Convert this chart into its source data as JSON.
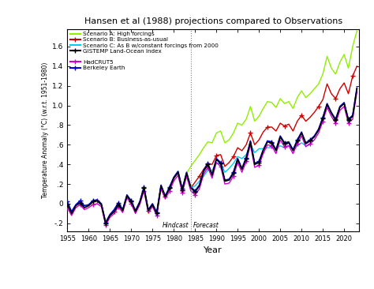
{
  "title": "Hansen et al (1988) projections compared to Observations",
  "xlabel": "Year",
  "ylabel": "Temperature Anomaly (°C) (w.r.t. 1951-1980)",
  "xlim": [
    1955,
    2023.5
  ],
  "ylim": [
    -0.28,
    1.78
  ],
  "yticks": [
    -0.2,
    0.0,
    0.2,
    0.4,
    0.6,
    0.8,
    1.0,
    1.2,
    1.4,
    1.6
  ],
  "ytick_labels": [
    "-.2",
    "0",
    ".2",
    ".4",
    ".6",
    ".8",
    "1.0",
    "1.2",
    "1.4",
    "1.6"
  ],
  "xticks": [
    1955,
    1960,
    1965,
    1970,
    1975,
    1980,
    1985,
    1990,
    1995,
    2000,
    2005,
    2010,
    2015,
    2020
  ],
  "hindcast_year": 1984,
  "scenario_a_color": "#90ee00",
  "scenario_b_color": "#cc0000",
  "scenario_c_color": "#00ccee",
  "gistemp_color": "#000000",
  "hadcrut5_color": "#cc00cc",
  "berkeley_color": "#0000dd",
  "bg_color": "#ffffff",
  "scenario_a_label": "Scenario A: High forcings",
  "scenario_b_label": "Scenario B: Business-as-usual",
  "scenario_c_label": "Scenario C: As B w/constant forcings from 2000",
  "gistemp_label": "GISTEMP Land-Ocean Index",
  "hadcrut5_label": "HadCRUT5",
  "berkeley_label": "Berkeley Earth",
  "obs_years": [
    1955,
    1956,
    1957,
    1958,
    1959,
    1960,
    1961,
    1962,
    1963,
    1964,
    1965,
    1966,
    1967,
    1968,
    1969,
    1970,
    1971,
    1972,
    1973,
    1974,
    1975,
    1976,
    1977,
    1978,
    1979,
    1980,
    1981,
    1982,
    1983,
    1984,
    1985,
    1986,
    1987,
    1988,
    1989,
    1990,
    1991,
    1992,
    1993,
    1994,
    1995,
    1996,
    1997,
    1998,
    1999,
    2000,
    2001,
    2002,
    2003,
    2004,
    2005,
    2006,
    2007,
    2008,
    2009,
    2010,
    2011,
    2012,
    2013,
    2014,
    2015,
    2016,
    2017,
    2018,
    2019,
    2020,
    2021,
    2022,
    2023
  ],
  "gistemp_vals": [
    -0.01,
    -0.1,
    -0.02,
    0.01,
    -0.04,
    -0.02,
    0.02,
    0.03,
    -0.01,
    -0.2,
    -0.12,
    -0.08,
    -0.01,
    -0.07,
    0.08,
    0.02,
    -0.08,
    0.01,
    0.16,
    -0.07,
    -0.01,
    -0.1,
    0.18,
    0.07,
    0.16,
    0.26,
    0.32,
    0.14,
    0.31,
    0.16,
    0.12,
    0.18,
    0.33,
    0.4,
    0.29,
    0.45,
    0.41,
    0.23,
    0.24,
    0.31,
    0.45,
    0.35,
    0.46,
    0.63,
    0.4,
    0.42,
    0.54,
    0.63,
    0.62,
    0.54,
    0.68,
    0.61,
    0.62,
    0.54,
    0.64,
    0.72,
    0.61,
    0.64,
    0.68,
    0.75,
    0.87,
    1.01,
    0.92,
    0.85,
    0.98,
    1.02,
    0.85,
    0.89,
    1.17
  ],
  "hadcrut5_vals": [
    -0.04,
    -0.12,
    -0.04,
    -0.01,
    -0.06,
    -0.04,
    -0.01,
    0.0,
    -0.03,
    -0.22,
    -0.14,
    -0.1,
    -0.03,
    -0.09,
    0.06,
    0.0,
    -0.1,
    -0.01,
    0.13,
    -0.09,
    -0.03,
    -0.12,
    0.15,
    0.05,
    0.13,
    0.23,
    0.29,
    0.11,
    0.28,
    0.13,
    0.09,
    0.15,
    0.3,
    0.37,
    0.26,
    0.42,
    0.38,
    0.2,
    0.21,
    0.28,
    0.42,
    0.32,
    0.43,
    0.6,
    0.37,
    0.39,
    0.51,
    0.6,
    0.59,
    0.51,
    0.65,
    0.58,
    0.59,
    0.51,
    0.61,
    0.69,
    0.58,
    0.61,
    0.65,
    0.72,
    0.84,
    0.98,
    0.89,
    0.82,
    0.95,
    0.99,
    0.82,
    0.86,
    1.14
  ],
  "berkeley_vals": [
    0.02,
    -0.08,
    -0.01,
    0.03,
    -0.02,
    -0.01,
    0.03,
    0.04,
    0.0,
    -0.19,
    -0.11,
    -0.06,
    0.01,
    -0.06,
    0.09,
    0.03,
    -0.07,
    0.02,
    0.17,
    -0.06,
    0.0,
    -0.09,
    0.19,
    0.08,
    0.17,
    0.27,
    0.33,
    0.15,
    0.32,
    0.17,
    0.13,
    0.19,
    0.34,
    0.41,
    0.3,
    0.46,
    0.42,
    0.24,
    0.25,
    0.32,
    0.46,
    0.36,
    0.47,
    0.64,
    0.41,
    0.43,
    0.55,
    0.64,
    0.63,
    0.55,
    0.69,
    0.62,
    0.63,
    0.55,
    0.65,
    0.73,
    0.62,
    0.65,
    0.69,
    0.76,
    0.88,
    1.02,
    0.93,
    0.86,
    0.99,
    1.03,
    0.86,
    0.9,
    1.18
  ],
  "scen_a_years": [
    1958,
    1959,
    1960,
    1961,
    1962,
    1963,
    1964,
    1965,
    1966,
    1967,
    1968,
    1969,
    1970,
    1971,
    1972,
    1973,
    1974,
    1975,
    1976,
    1977,
    1978,
    1979,
    1980,
    1981,
    1982,
    1983,
    1984,
    1985,
    1986,
    1987,
    1988,
    1989,
    1990,
    1991,
    1992,
    1993,
    1994,
    1995,
    1996,
    1997,
    1998,
    1999,
    2000,
    2001,
    2002,
    2003,
    2004,
    2005,
    2006,
    2007,
    2008,
    2009,
    2010,
    2011,
    2012,
    2013,
    2014,
    2015,
    2016,
    2017,
    2018,
    2019,
    2020,
    2021,
    2022,
    2023
  ],
  "scen_a_vals": [
    0.01,
    -0.04,
    -0.02,
    0.02,
    0.03,
    -0.01,
    -0.2,
    -0.12,
    -0.08,
    -0.01,
    -0.07,
    0.08,
    0.02,
    -0.08,
    0.01,
    0.16,
    -0.07,
    -0.01,
    -0.1,
    0.18,
    0.07,
    0.16,
    0.26,
    0.32,
    0.14,
    0.31,
    0.38,
    0.44,
    0.5,
    0.57,
    0.63,
    0.62,
    0.72,
    0.74,
    0.62,
    0.65,
    0.72,
    0.82,
    0.8,
    0.86,
    0.99,
    0.84,
    0.89,
    0.97,
    1.04,
    1.03,
    0.98,
    1.07,
    1.02,
    1.04,
    0.97,
    1.08,
    1.15,
    1.08,
    1.12,
    1.17,
    1.22,
    1.32,
    1.5,
    1.38,
    1.32,
    1.44,
    1.52,
    1.38,
    1.6,
    1.76
  ],
  "scen_b_years": [
    1958,
    1959,
    1960,
    1961,
    1962,
    1963,
    1964,
    1965,
    1966,
    1967,
    1968,
    1969,
    1970,
    1971,
    1972,
    1973,
    1974,
    1975,
    1976,
    1977,
    1978,
    1979,
    1980,
    1981,
    1982,
    1983,
    1984,
    1985,
    1986,
    1987,
    1988,
    1989,
    1990,
    1991,
    1992,
    1993,
    1994,
    1995,
    1996,
    1997,
    1998,
    1999,
    2000,
    2001,
    2002,
    2003,
    2004,
    2005,
    2006,
    2007,
    2008,
    2009,
    2010,
    2011,
    2012,
    2013,
    2014,
    2015,
    2016,
    2017,
    2018,
    2019,
    2020,
    2021,
    2022,
    2023
  ],
  "scen_b_vals": [
    0.01,
    -0.04,
    -0.02,
    0.02,
    0.03,
    -0.01,
    -0.2,
    -0.12,
    -0.08,
    -0.01,
    -0.07,
    0.08,
    0.02,
    -0.08,
    0.01,
    0.16,
    -0.07,
    -0.01,
    -0.1,
    0.18,
    0.07,
    0.16,
    0.26,
    0.32,
    0.14,
    0.31,
    0.16,
    0.22,
    0.28,
    0.35,
    0.41,
    0.4,
    0.49,
    0.5,
    0.38,
    0.42,
    0.48,
    0.57,
    0.54,
    0.6,
    0.72,
    0.6,
    0.65,
    0.73,
    0.78,
    0.78,
    0.74,
    0.82,
    0.79,
    0.81,
    0.74,
    0.84,
    0.9,
    0.84,
    0.88,
    0.93,
    0.99,
    1.06,
    1.22,
    1.12,
    1.07,
    1.17,
    1.23,
    1.12,
    1.3,
    1.4
  ],
  "scen_c_years": [
    1958,
    1959,
    1960,
    1961,
    1962,
    1963,
    1964,
    1965,
    1966,
    1967,
    1968,
    1969,
    1970,
    1971,
    1972,
    1973,
    1974,
    1975,
    1976,
    1977,
    1978,
    1979,
    1980,
    1981,
    1982,
    1983,
    1984,
    1985,
    1986,
    1987,
    1988,
    1989,
    1990,
    1991,
    1992,
    1993,
    1994,
    1995,
    1996,
    1997,
    1998,
    1999,
    2000,
    2001,
    2002,
    2003,
    2004,
    2005,
    2006,
    2007,
    2008,
    2009,
    2010,
    2011,
    2012
  ],
  "scen_c_vals": [
    0.01,
    -0.04,
    -0.02,
    0.02,
    0.03,
    -0.01,
    -0.2,
    -0.12,
    -0.08,
    -0.01,
    -0.07,
    0.08,
    0.02,
    -0.08,
    0.01,
    0.16,
    -0.07,
    -0.01,
    -0.1,
    0.18,
    0.07,
    0.16,
    0.26,
    0.32,
    0.14,
    0.31,
    0.16,
    0.18,
    0.23,
    0.28,
    0.34,
    0.34,
    0.41,
    0.42,
    0.32,
    0.36,
    0.41,
    0.48,
    0.46,
    0.5,
    0.6,
    0.52,
    0.56,
    0.56,
    0.57,
    0.57,
    0.56,
    0.59,
    0.57,
    0.59,
    0.55,
    0.59,
    0.62,
    0.59,
    0.6
  ]
}
